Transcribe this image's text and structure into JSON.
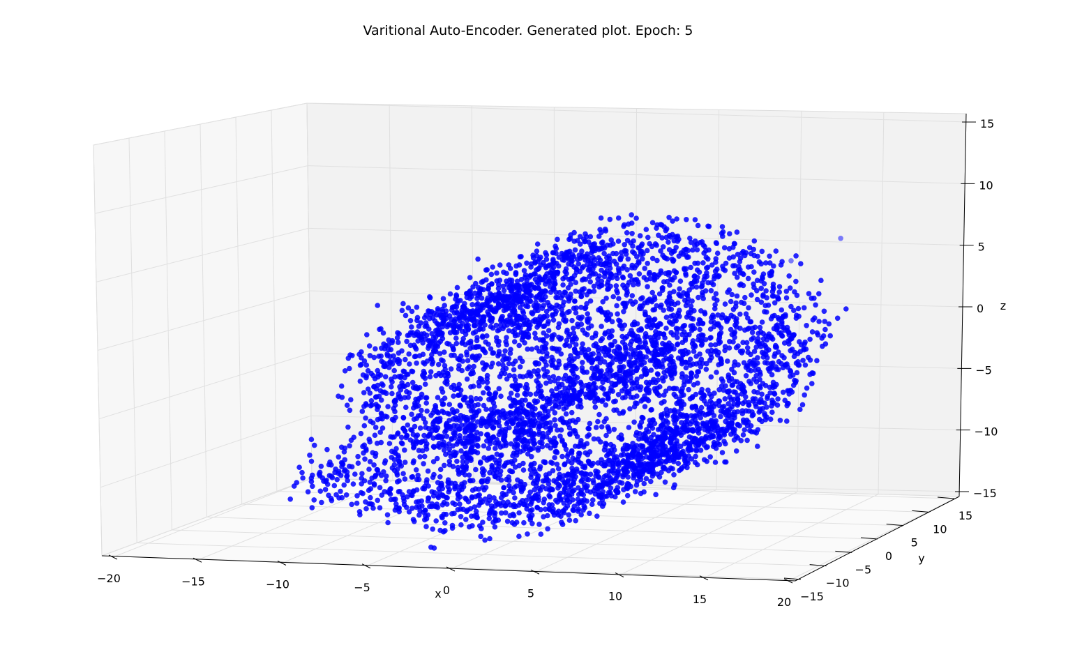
{
  "chart_data": {
    "type": "scatter",
    "projection": "3d",
    "title": "Varitional Auto-Encoder. Generated plot. Epoch: 5",
    "xlabel": "x",
    "ylabel": "y",
    "zlabel": "z",
    "xlim": [
      -20,
      20
    ],
    "ylim": [
      -15,
      15
    ],
    "zlim": [
      -15,
      15
    ],
    "xticks": [
      "−20",
      "−15",
      "−10",
      "−5",
      "0",
      "5",
      "10",
      "15",
      "20"
    ],
    "yticks": [
      "−15",
      "−10",
      "−5",
      "0",
      "5",
      "10",
      "15"
    ],
    "zticks": [
      "−15",
      "−10",
      "−5",
      "0",
      "5",
      "10",
      "15"
    ],
    "grid": true,
    "marker_color": "#0000ff",
    "series": [
      {
        "shape": "swiss-roll spiral in the x–z plane",
        "point_count_approx": 5000,
        "center_xz": [
          1.0,
          -1.0
        ],
        "outer_radius_x": 13,
        "outer_radius_z": 11,
        "inner_radius": 2,
        "turns": 1.5,
        "y_range": [
          -15,
          15
        ],
        "outliers": [
          {
            "x": 15,
            "y": 0,
            "z": 8
          },
          {
            "x": 18,
            "y": 0,
            "z": 10
          }
        ]
      }
    ]
  }
}
